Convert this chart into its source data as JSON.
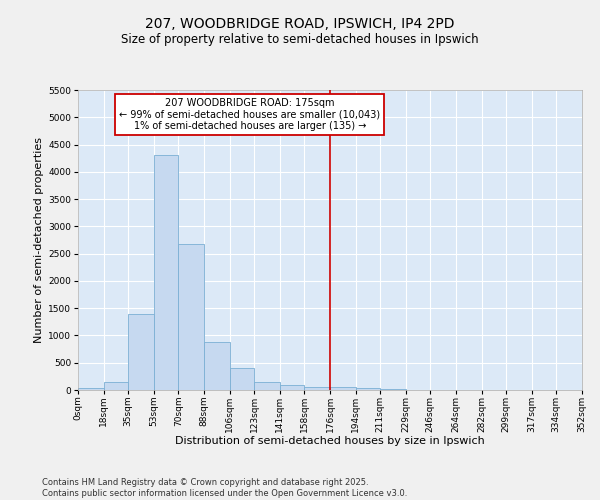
{
  "title_line1": "207, WOODBRIDGE ROAD, IPSWICH, IP4 2PD",
  "title_line2": "Size of property relative to semi-detached houses in Ipswich",
  "xlabel": "Distribution of semi-detached houses by size in Ipswich",
  "ylabel": "Number of semi-detached properties",
  "bar_color": "#c6d9f0",
  "bar_edge_color": "#7bafd4",
  "background_color": "#dce9f7",
  "grid_color": "#ffffff",
  "marker_value": 176,
  "marker_color": "#cc0000",
  "annotation_text": "207 WOODBRIDGE ROAD: 175sqm\n← 99% of semi-detached houses are smaller (10,043)\n1% of semi-detached houses are larger (135) →",
  "annotation_box_facecolor": "#ffffff",
  "annotation_box_edgecolor": "#cc0000",
  "bin_edges": [
    0,
    18,
    35,
    53,
    70,
    88,
    106,
    123,
    141,
    158,
    176,
    194,
    211,
    229,
    246,
    264,
    282,
    299,
    317,
    334,
    352
  ],
  "bin_counts": [
    28,
    155,
    1385,
    4300,
    2670,
    880,
    400,
    150,
    90,
    52,
    55,
    28,
    10,
    5,
    4,
    4,
    2,
    2,
    2,
    2
  ],
  "ylim": [
    0,
    5500
  ],
  "yticks": [
    0,
    500,
    1000,
    1500,
    2000,
    2500,
    3000,
    3500,
    4000,
    4500,
    5000,
    5500
  ],
  "fig_facecolor": "#f0f0f0",
  "footer_text": "Contains HM Land Registry data © Crown copyright and database right 2025.\nContains public sector information licensed under the Open Government Licence v3.0.",
  "title_fontsize": 10,
  "subtitle_fontsize": 8.5,
  "axis_label_fontsize": 8,
  "tick_fontsize": 6.5,
  "footer_fontsize": 6,
  "annotation_fontsize": 7
}
